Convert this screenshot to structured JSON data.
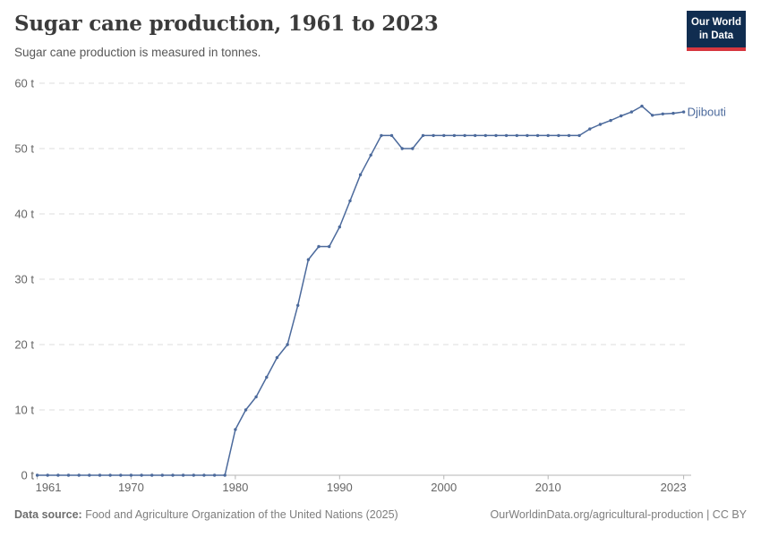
{
  "header": {
    "title": "Sugar cane production, 1961 to 2023",
    "subtitle": "Sugar cane production is measured in tonnes."
  },
  "logo": {
    "line1": "Our World",
    "line2": "in Data"
  },
  "colors": {
    "line": "#4C6A9C",
    "grid": "#dcdcdc",
    "axis": "#b5b5b5",
    "tick_text": "#666666",
    "series_label": "#4C6A9C",
    "logo_bg": "#102d50",
    "logo_accent": "#d7373f"
  },
  "chart_data": {
    "type": "line",
    "title": "Sugar cane production, 1961 to 2023",
    "subtitle": "Sugar cane production is measured in tonnes.",
    "xlabel": "",
    "ylabel": "",
    "xlim": [
      1961,
      2023
    ],
    "ylim": [
      0,
      60
    ],
    "grid": "horizontal-dashed",
    "legend": "end-of-line-label",
    "x_ticks": [
      1961,
      1970,
      1980,
      1990,
      2000,
      2010,
      2023
    ],
    "y_ticks": [
      0,
      10,
      20,
      30,
      40,
      50,
      60
    ],
    "y_tick_format": "{v} t",
    "x": [
      1961,
      1962,
      1963,
      1964,
      1965,
      1966,
      1967,
      1968,
      1969,
      1970,
      1971,
      1972,
      1973,
      1974,
      1975,
      1976,
      1977,
      1978,
      1979,
      1980,
      1981,
      1982,
      1983,
      1984,
      1985,
      1986,
      1987,
      1988,
      1989,
      1990,
      1991,
      1992,
      1993,
      1994,
      1995,
      1996,
      1997,
      1998,
      1999,
      2000,
      2001,
      2002,
      2003,
      2004,
      2005,
      2006,
      2007,
      2008,
      2009,
      2010,
      2011,
      2012,
      2013,
      2014,
      2015,
      2016,
      2017,
      2018,
      2019,
      2020,
      2021,
      2022,
      2023
    ],
    "series": [
      {
        "name": "Djibouti",
        "values": [
          0,
          0,
          0,
          0,
          0,
          0,
          0,
          0,
          0,
          0,
          0,
          0,
          0,
          0,
          0,
          0,
          0,
          0,
          0,
          7,
          10,
          12,
          15,
          18,
          20,
          26,
          33,
          35,
          35,
          38,
          42,
          46,
          49,
          52,
          52,
          50,
          50,
          52,
          52,
          52,
          52,
          52,
          52,
          52,
          52,
          52,
          52,
          52,
          52,
          52,
          52,
          52,
          52,
          53,
          53.7,
          54.3,
          55,
          55.6,
          56.5,
          55.1,
          55.3,
          55.4,
          55.6
        ]
      }
    ]
  },
  "footer": {
    "source_label": "Data source:",
    "source_text": " Food and Agriculture Organization of the United Nations (2025)",
    "link": "OurWorldinData.org/agricultural-production",
    "license_suffix": " | CC BY"
  }
}
